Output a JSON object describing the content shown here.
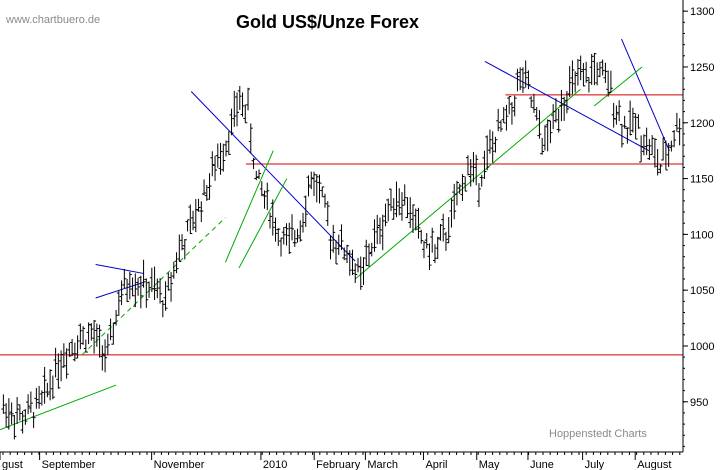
{
  "chart_data": {
    "type": "ohlc",
    "title": "Gold US$/Unze Forex",
    "watermark": "www.chartbuero.de",
    "source": "Hoppenstedt Charts",
    "ylim": [
      905,
      1310
    ],
    "y_ticks": [
      950,
      1000,
      1050,
      1100,
      1150,
      1200,
      1250,
      1300
    ],
    "y_tick_labels": [
      "950",
      "1000",
      "1050",
      "1100",
      "1150",
      "1200",
      "1250",
      "1300"
    ],
    "x_labels": [
      "gust",
      "September",
      "November",
      "2010",
      "February",
      "March",
      "April",
      "May",
      "June",
      "July",
      "August"
    ],
    "grid": false,
    "colors": {
      "support_line": "#d00000",
      "downtrend": "#0000cc",
      "uptrend": "#00aa00",
      "bars": "#000000"
    },
    "close_path": [
      [
        0,
        945
      ],
      [
        7,
        935
      ],
      [
        14,
        950
      ],
      [
        20,
        985
      ],
      [
        26,
        1005
      ],
      [
        32,
        1010
      ],
      [
        38,
        990
      ],
      [
        42,
        1040
      ],
      [
        46,
        1060
      ],
      [
        50,
        1055
      ],
      [
        55,
        1050
      ],
      [
        59,
        1040
      ],
      [
        63,
        1080
      ],
      [
        67,
        1100
      ],
      [
        72,
        1130
      ],
      [
        77,
        1160
      ],
      [
        82,
        1190
      ],
      [
        86,
        1220
      ],
      [
        89,
        1210
      ],
      [
        92,
        1150
      ],
      [
        96,
        1130
      ],
      [
        100,
        1100
      ],
      [
        104,
        1090
      ],
      [
        108,
        1110
      ],
      [
        112,
        1150
      ],
      [
        115,
        1140
      ],
      [
        119,
        1100
      ],
      [
        123,
        1090
      ],
      [
        127,
        1075
      ],
      [
        130,
        1060
      ],
      [
        134,
        1090
      ],
      [
        138,
        1110
      ],
      [
        142,
        1135
      ],
      [
        146,
        1130
      ],
      [
        150,
        1110
      ],
      [
        153,
        1090
      ],
      [
        157,
        1085
      ],
      [
        161,
        1100
      ],
      [
        165,
        1130
      ],
      [
        169,
        1160
      ],
      [
        173,
        1150
      ],
      [
        177,
        1175
      ],
      [
        181,
        1195
      ],
      [
        185,
        1215
      ],
      [
        188,
        1240
      ],
      [
        191,
        1230
      ],
      [
        194,
        1200
      ],
      [
        197,
        1180
      ],
      [
        200,
        1200
      ],
      [
        203,
        1220
      ],
      [
        206,
        1230
      ],
      [
        209,
        1240
      ],
      [
        212,
        1235
      ],
      [
        215,
        1250
      ],
      [
        218,
        1240
      ],
      [
        221,
        1230
      ],
      [
        224,
        1205
      ],
      [
        227,
        1195
      ],
      [
        230,
        1200
      ],
      [
        233,
        1185
      ],
      [
        236,
        1175
      ],
      [
        239,
        1160
      ],
      [
        242,
        1175
      ],
      [
        244,
        1190
      ],
      [
        246,
        1200
      ]
    ],
    "horizontal_lines": [
      {
        "y": 1225,
        "x0": 0.74,
        "x1": 1.0
      },
      {
        "y": 1163,
        "x0": 0.36,
        "x1": 1.0
      },
      {
        "y": 992,
        "x0": 0.0,
        "x1": 1.0
      }
    ],
    "trend_lines": [
      {
        "kind": "down",
        "p": [
          [
            0.28,
            1228
          ],
          [
            0.52,
            1076
          ]
        ]
      },
      {
        "kind": "down",
        "p": [
          [
            0.71,
            1255
          ],
          [
            0.95,
            1175
          ]
        ]
      },
      {
        "kind": "down",
        "p": [
          [
            0.91,
            1275
          ],
          [
            0.98,
            1175
          ]
        ]
      },
      {
        "kind": "up",
        "p": [
          [
            0.0,
            925
          ],
          [
            0.17,
            965
          ]
        ]
      },
      {
        "kind": "up",
        "p": [
          [
            0.52,
            1060
          ],
          [
            0.85,
            1230
          ]
        ]
      },
      {
        "kind": "up",
        "p": [
          [
            0.33,
            1075
          ],
          [
            0.4,
            1175
          ]
        ]
      },
      {
        "kind": "up",
        "p": [
          [
            0.35,
            1070
          ],
          [
            0.42,
            1150
          ]
        ]
      },
      {
        "kind": "up",
        "p": [
          [
            0.87,
            1215
          ],
          [
            0.94,
            1250
          ]
        ]
      }
    ],
    "dashed_trend": {
      "p": [
        [
          0.12,
          992
        ],
        [
          0.33,
          1115
        ]
      ]
    },
    "triangle": {
      "p": [
        [
          0.14,
          1073
        ],
        [
          0.21,
          1065
        ],
        [
          0.14,
          1043
        ]
      ]
    }
  }
}
